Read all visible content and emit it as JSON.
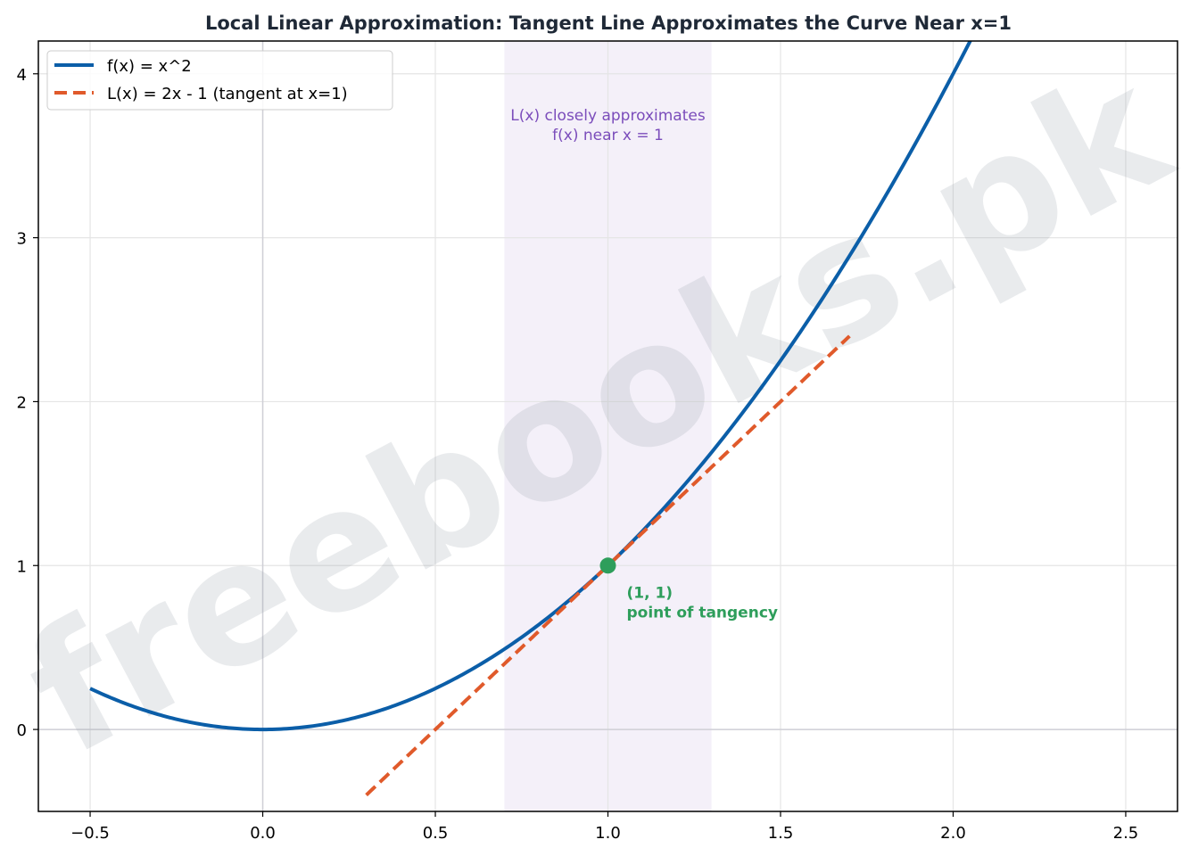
{
  "chart_data": {
    "type": "line",
    "title": "Local Linear Approximation: Tangent Line Approximates the Curve Near x=1",
    "xlabel": "",
    "ylabel": "",
    "xlim": [
      -0.65,
      2.65
    ],
    "ylim": [
      -0.5,
      4.2
    ],
    "x_ticks": [
      -0.5,
      0.0,
      0.5,
      1.0,
      1.5,
      2.0,
      2.5
    ],
    "x_tick_labels": [
      "−0.5",
      "0.0",
      "0.5",
      "1.0",
      "1.5",
      "2.0",
      "2.5"
    ],
    "y_ticks": [
      0,
      1,
      2,
      3,
      4
    ],
    "y_tick_labels": [
      "0",
      "1",
      "2",
      "3",
      "4"
    ],
    "grid": true,
    "legend_position": "top-left",
    "series": [
      {
        "name": "f(x) = x^2",
        "kind": "function",
        "expression": "x^2",
        "x_range": [
          -0.5,
          2.05
        ],
        "color": "#0b5ea8",
        "style": "solid"
      },
      {
        "name": "L(x) = 2x - 1 (tangent at x=1)",
        "kind": "function",
        "expression": "2x - 1",
        "x_range": [
          0.3,
          1.7
        ],
        "color": "#e05a2b",
        "style": "dashed"
      }
    ],
    "highlight_region": {
      "x_range": [
        0.7,
        1.3
      ],
      "color": "#ece6f5"
    },
    "point": {
      "x": 1,
      "y": 1,
      "color": "#2e9e5b"
    },
    "annotations": {
      "region_line1": "L(x) closely approximates",
      "region_line2": "f(x) near x = 1",
      "point_line1": "(1, 1)",
      "point_line2": "point of tangency"
    },
    "watermark": "freebooks.pk"
  }
}
